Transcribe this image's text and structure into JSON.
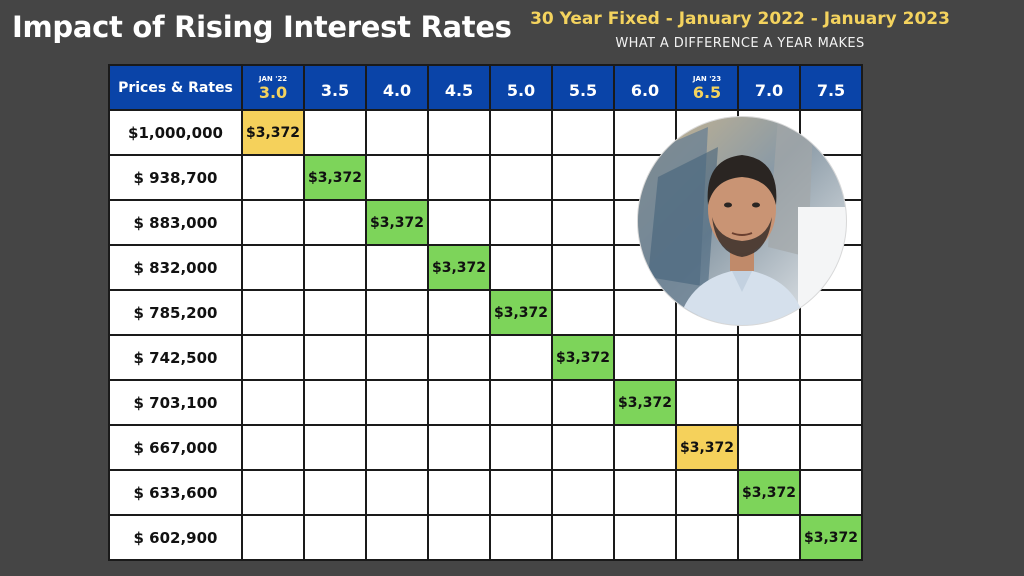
{
  "title": "Impact of Rising Interest Rates",
  "subtitle": "30 Year Fixed - January 2022 - January 2023",
  "tagline": "WHAT A DIFFERENCE A YEAR MAKES",
  "colors": {
    "header": "#0a44a8",
    "green": "#7dd45a",
    "yellow": "#f5d15b",
    "accent_text": "#f4d35e"
  },
  "chart_data": {
    "type": "table",
    "corner_label": "Prices & Rates",
    "rates": [
      {
        "label": "3.0",
        "date": "JAN '22"
      },
      {
        "label": "3.5",
        "date": ""
      },
      {
        "label": "4.0",
        "date": ""
      },
      {
        "label": "4.5",
        "date": ""
      },
      {
        "label": "5.0",
        "date": ""
      },
      {
        "label": "5.5",
        "date": ""
      },
      {
        "label": "6.0",
        "date": ""
      },
      {
        "label": "6.5",
        "date": "JAN '23"
      },
      {
        "label": "7.0",
        "date": ""
      },
      {
        "label": "7.5",
        "date": ""
      }
    ],
    "rows": [
      {
        "price": "$1,000,000",
        "rate_index": 0,
        "payment": "$3,372",
        "highlight": "yellow"
      },
      {
        "price": "$ 938,700",
        "rate_index": 1,
        "payment": "$3,372",
        "highlight": "green"
      },
      {
        "price": "$ 883,000",
        "rate_index": 2,
        "payment": "$3,372",
        "highlight": "green"
      },
      {
        "price": "$ 832,000",
        "rate_index": 3,
        "payment": "$3,372",
        "highlight": "green"
      },
      {
        "price": "$ 785,200",
        "rate_index": 4,
        "payment": "$3,372",
        "highlight": "green"
      },
      {
        "price": "$ 742,500",
        "rate_index": 5,
        "payment": "$3,372",
        "highlight": "green"
      },
      {
        "price": "$ 703,100",
        "rate_index": 6,
        "payment": "$3,372",
        "highlight": "green"
      },
      {
        "price": "$ 667,000",
        "rate_index": 7,
        "payment": "$3,372",
        "highlight": "yellow"
      },
      {
        "price": "$ 633,600",
        "rate_index": 8,
        "payment": "$3,372",
        "highlight": "green"
      },
      {
        "price": "$ 602,900",
        "rate_index": 9,
        "payment": "$3,372",
        "highlight": "green"
      }
    ]
  }
}
